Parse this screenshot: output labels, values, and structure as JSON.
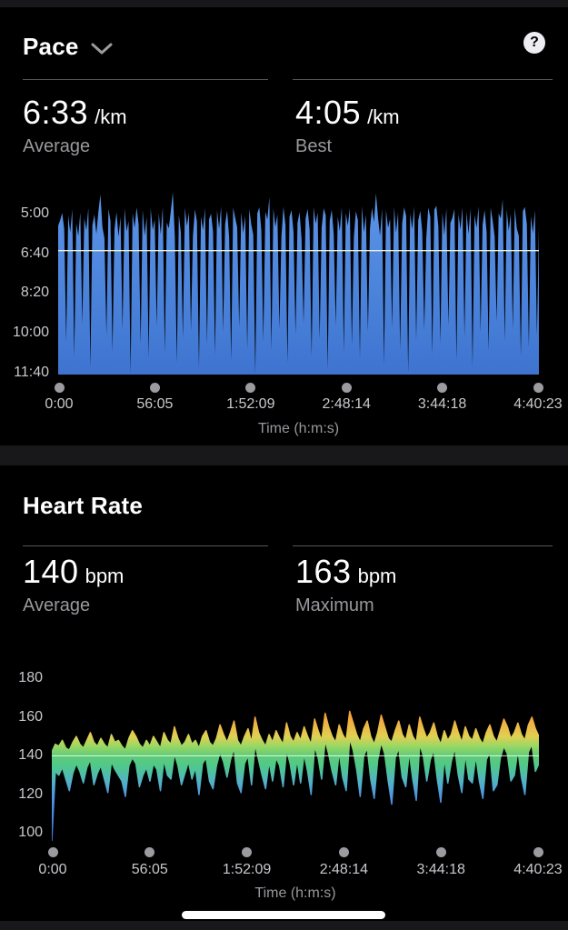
{
  "pace_card": {
    "title": "Pace",
    "help_label": "?",
    "metrics": {
      "left": {
        "value": "6:33",
        "unit": "/km",
        "label": "Average"
      },
      "right": {
        "value": "4:05",
        "unit": "/km",
        "label": "Best"
      }
    }
  },
  "hr_card": {
    "title": "Heart Rate",
    "metrics": {
      "left": {
        "value": "140",
        "unit": "bpm",
        "label": "Average"
      },
      "right": {
        "value": "163",
        "unit": "bpm",
        "label": "Maximum"
      }
    }
  },
  "chart_data": [
    {
      "type": "area",
      "title": "Pace",
      "xlabel": "Time (h:m:s)",
      "xtick_labels": [
        "0:00",
        "56:05",
        "1:52:09",
        "2:48:14",
        "3:44:18",
        "4:40:23"
      ],
      "ytick_labels": [
        "5:00",
        "6:40",
        "8:20",
        "10:00",
        "11:40"
      ],
      "ytick_values_sec": [
        300,
        400,
        500,
        600,
        700
      ],
      "y_axis_inverted": true,
      "ylim_sec": [
        238,
        705
      ],
      "average_sec_per_km": 393,
      "best_sec_per_km": 245,
      "fill_top": "#5b95e8",
      "fill_bottom": "#3e74d0",
      "avg_line_color": "#f8f8e6",
      "values_sec_per_km": [
        330,
        316,
        298,
        338,
        622,
        305,
        347,
        289,
        661,
        324,
        356,
        297,
        578,
        311,
        342,
        286,
        688,
        330,
        302,
        351,
        295,
        252,
        333,
        362,
        607,
        288,
        318,
        648,
        340,
        296,
        358,
        309,
        592,
        287,
        344,
        319,
        703,
        298,
        336,
        284,
        327,
        629,
        290,
        355,
        308,
        663,
        286,
        341,
        315,
        584,
        299,
        352,
        283,
        650,
        322,
        337,
        294,
        246,
        359,
        675,
        303,
        348,
        613,
        285,
        331,
        297,
        595,
        356,
        289,
        320,
        689,
        307,
        341,
        286,
        628,
        314,
        300,
        345,
        655,
        291,
        338,
        282,
        598,
        326,
        292,
        360,
        670,
        285,
        310,
        334,
        586,
        296,
        349,
        305,
        641,
        288,
        327,
        353,
        705,
        299,
        284,
        342,
        621,
        295,
        315,
        258,
        644,
        287,
        333,
        302,
        590,
        357,
        283,
        329,
        676,
        308,
        291,
        346,
        604,
        323,
        296,
        363,
        577,
        312,
        288,
        340,
        659,
        284,
        325,
        297,
        616,
        335,
        286,
        304,
        692,
        318,
        290,
        352,
        582,
        307,
        344,
        283,
        649,
        298,
        330,
        286,
        631,
        359,
        294,
        316,
        665,
        281,
        347,
        302,
        597,
        338,
        285,
        321,
        249,
        309,
        356,
        287,
        680,
        291,
        335,
        313,
        588,
        283,
        348,
        296,
        642,
        325,
        284,
        306,
        701,
        299,
        339,
        282,
        619,
        317,
        293,
        345,
        593,
        361,
        285,
        308,
        655,
        290,
        280,
        332,
        627,
        297,
        354,
        286,
        581,
        323,
        310,
        288,
        668,
        301,
        340,
        284,
        610,
        295,
        351,
        287,
        684,
        303,
        336,
        282,
        599,
        328,
        291,
        346,
        646,
        285,
        317,
        358,
        572,
        299,
        312,
        264,
        622,
        289,
        343,
        300,
        592,
        285,
        337,
        355,
        660,
        294,
        283,
        326,
        637,
        306,
        349,
        291,
        607,
        335
      ]
    },
    {
      "type": "area-band",
      "title": "Heart Rate",
      "xlabel": "Time (h:m:s)",
      "xtick_labels": [
        "0:00",
        "56:05",
        "1:52:09",
        "2:48:14",
        "3:44:18",
        "4:40:23"
      ],
      "ytick_labels": [
        "180",
        "160",
        "140",
        "120",
        "100"
      ],
      "ytick_values": [
        180,
        160,
        140,
        120,
        100
      ],
      "ylim": [
        96,
        183
      ],
      "average_bpm": 140,
      "max_bpm": 163,
      "avg_line_color": "#ffffff",
      "gradient_stops": [
        [
          170,
          "#f5832c"
        ],
        [
          158,
          "#f2ac40"
        ],
        [
          150,
          "#e0cf52"
        ],
        [
          145,
          "#9ad764"
        ],
        [
          140,
          "#5ecb76"
        ],
        [
          134,
          "#4fc78f"
        ],
        [
          127,
          "#52b3c4"
        ],
        [
          120,
          "#4f97dc"
        ],
        [
          110,
          "#4a85e2"
        ],
        [
          98,
          "#4679e4"
        ]
      ],
      "high": [
        142,
        146,
        145,
        148,
        144,
        143,
        147,
        150,
        146,
        144,
        148,
        152,
        147,
        145,
        149,
        146,
        144,
        151,
        147,
        148,
        145,
        143,
        149,
        153,
        150,
        146,
        144,
        148,
        145,
        150,
        147,
        144,
        152,
        148,
        146,
        155,
        149,
        145,
        147,
        151,
        146,
        148,
        144,
        150,
        153,
        147,
        145,
        149,
        156,
        151,
        147,
        152,
        158,
        148,
        145,
        150,
        154,
        147,
        160,
        152,
        148,
        145,
        151,
        147,
        153,
        149,
        146,
        157,
        150,
        147,
        152,
        148,
        155,
        150,
        146,
        159,
        153,
        148,
        162,
        155,
        150,
        147,
        156,
        151,
        148,
        163,
        157,
        151,
        147,
        154,
        158,
        150,
        146,
        152,
        161,
        155,
        149,
        147,
        153,
        158,
        151,
        148,
        156,
        150,
        147,
        160,
        154,
        149,
        152,
        157,
        150,
        146,
        153,
        148,
        151,
        158,
        152,
        147,
        155,
        150,
        148,
        154,
        149,
        146,
        152,
        156,
        150,
        147,
        153,
        159,
        155,
        149,
        152,
        157,
        151,
        148,
        156,
        160,
        154,
        150
      ],
      "low": [
        96,
        132,
        130,
        134,
        128,
        122,
        131,
        136,
        132,
        126,
        134,
        138,
        125,
        131,
        135,
        128,
        121,
        137,
        133,
        130,
        127,
        119,
        135,
        139,
        136,
        124,
        130,
        134,
        127,
        136,
        133,
        122,
        138,
        130,
        128,
        141,
        135,
        125,
        131,
        137,
        128,
        134,
        120,
        136,
        139,
        127,
        123,
        135,
        142,
        137,
        129,
        138,
        144,
        126,
        121,
        136,
        140,
        125,
        146,
        138,
        130,
        123,
        137,
        127,
        139,
        135,
        124,
        143,
        136,
        125,
        138,
        126,
        141,
        132,
        120,
        145,
        139,
        128,
        148,
        141,
        132,
        125,
        142,
        129,
        122,
        149,
        143,
        133,
        119,
        140,
        144,
        128,
        118,
        138,
        147,
        141,
        127,
        115,
        139,
        144,
        129,
        124,
        142,
        128,
        117,
        146,
        140,
        127,
        138,
        143,
        128,
        116,
        139,
        126,
        137,
        144,
        130,
        121,
        141,
        128,
        126,
        140,
        127,
        118,
        138,
        142,
        122,
        125,
        139,
        145,
        141,
        127,
        130,
        143,
        129,
        120,
        142,
        146,
        132,
        136
      ]
    }
  ]
}
